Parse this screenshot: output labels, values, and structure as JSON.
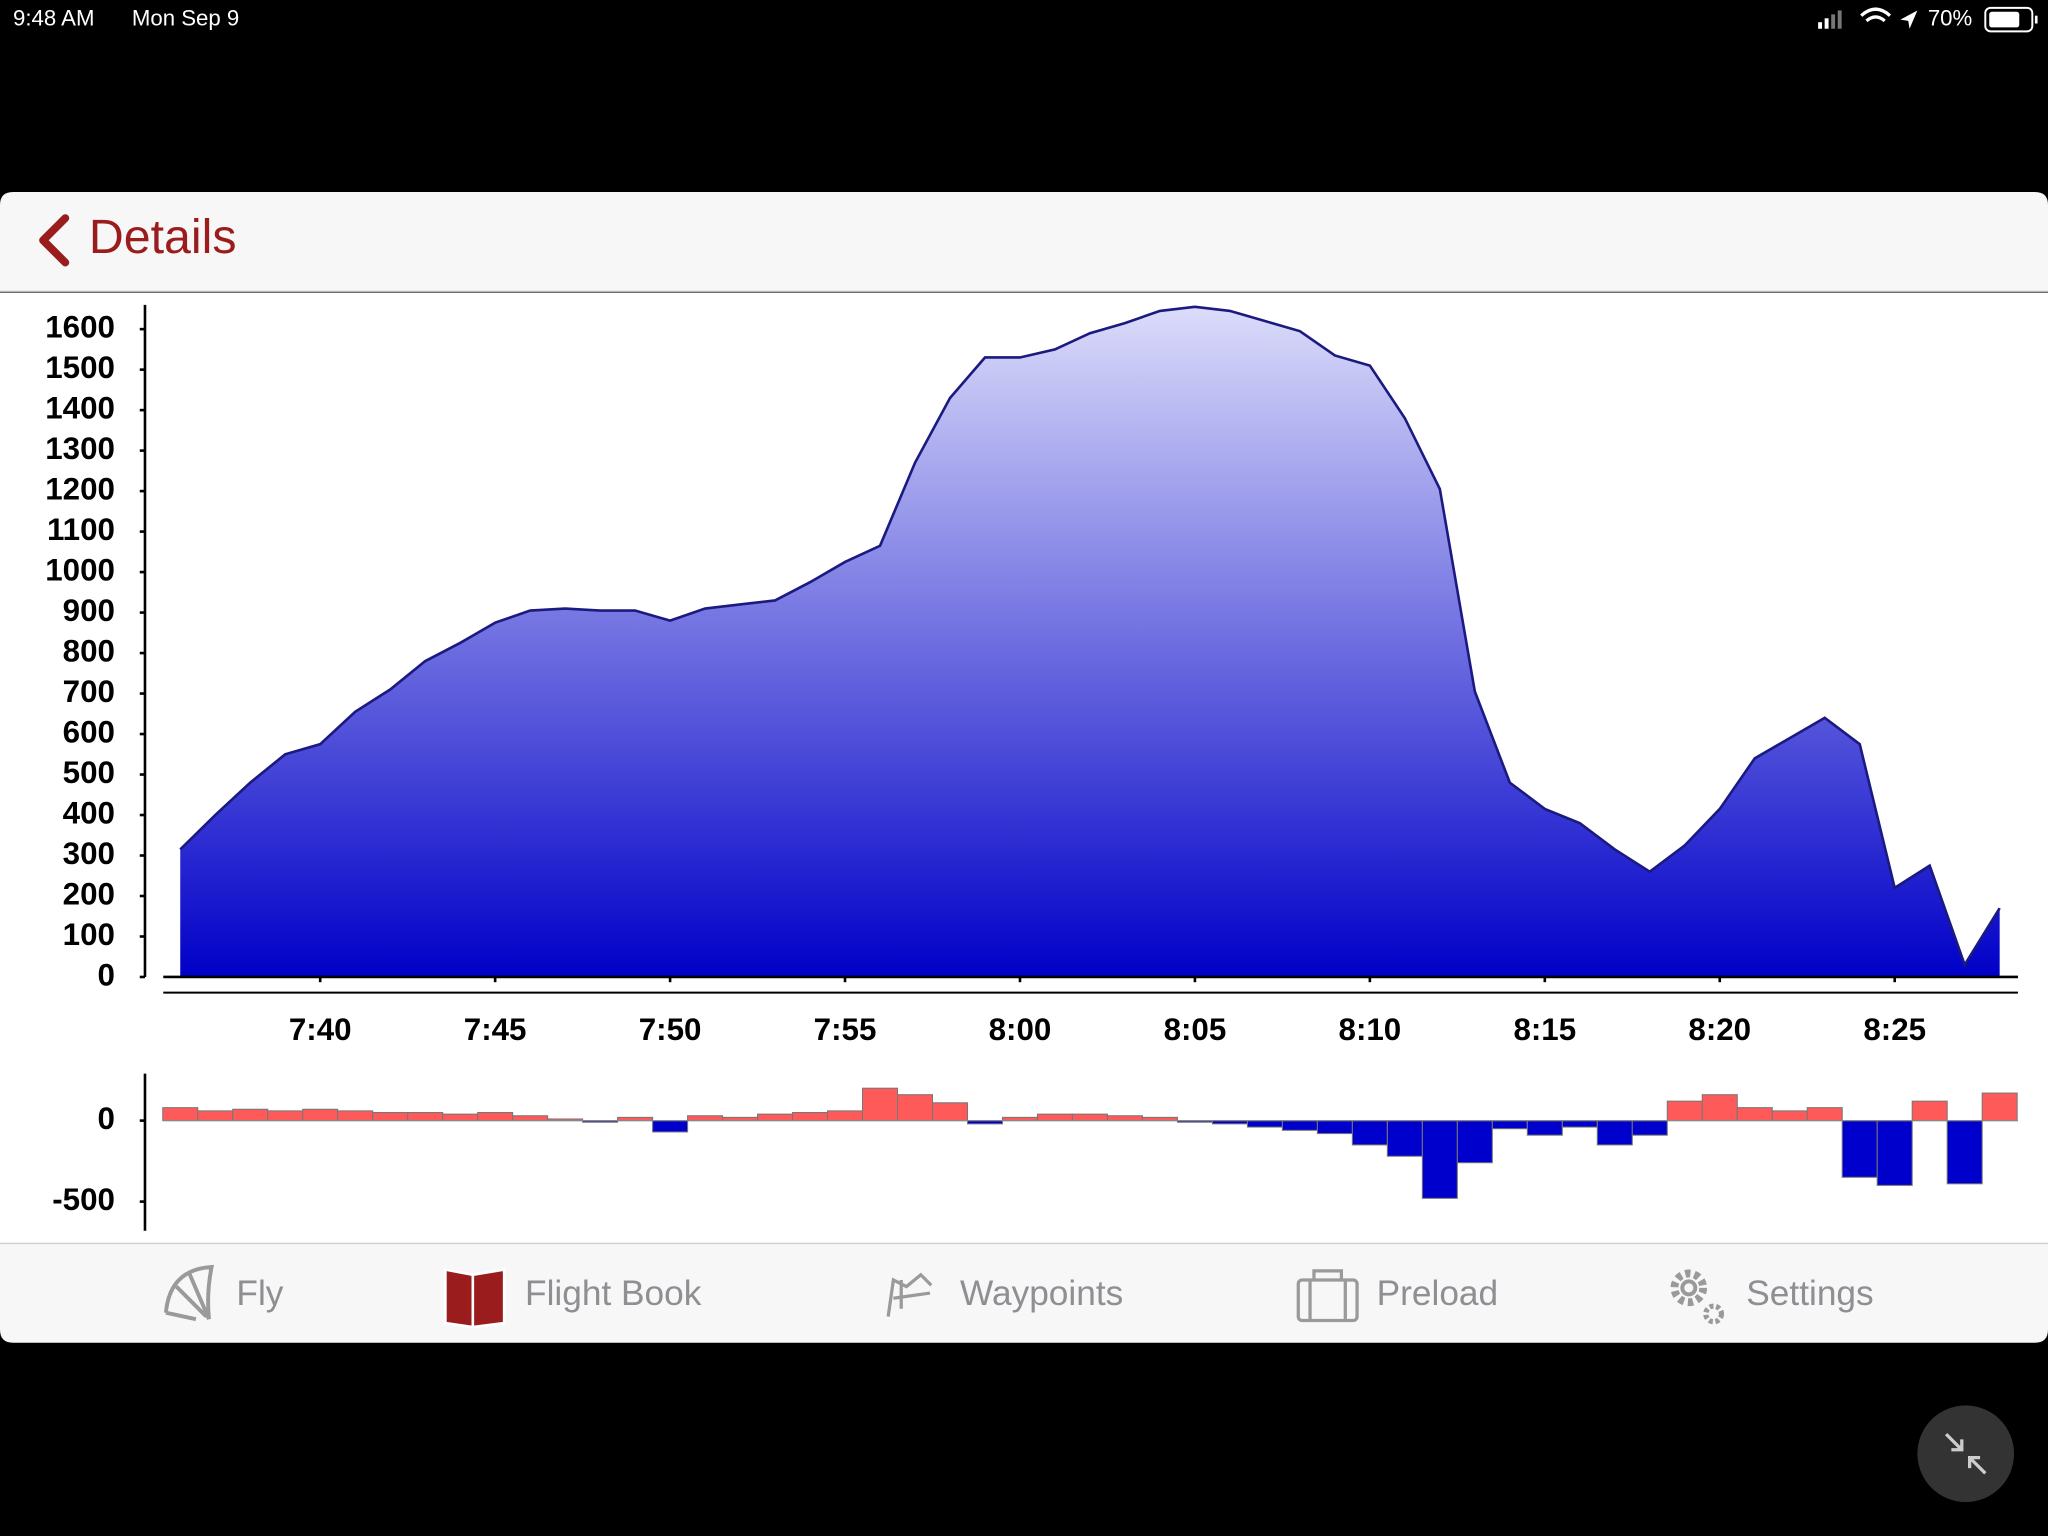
{
  "status_bar": {
    "time": "9:48 AM",
    "date": "Mon Sep 9",
    "battery": "70%"
  },
  "nav": {
    "back": "Details"
  },
  "chart_data": [
    {
      "type": "area",
      "x": [
        "7:36",
        "7:37",
        "7:38",
        "7:39",
        "7:40",
        "7:41",
        "7:42",
        "7:43",
        "7:44",
        "7:45",
        "7:46",
        "7:47",
        "7:48",
        "7:49",
        "7:50",
        "7:51",
        "7:52",
        "7:53",
        "7:54",
        "7:55",
        "7:56",
        "7:57",
        "7:58",
        "7:59",
        "8:00",
        "8:01",
        "8:02",
        "8:03",
        "8:04",
        "8:05",
        "8:06",
        "8:07",
        "8:08",
        "8:09",
        "8:10",
        "8:11",
        "8:12",
        "8:13",
        "8:14",
        "8:15",
        "8:16",
        "8:17",
        "8:18",
        "8:19",
        "8:20",
        "8:21",
        "8:22",
        "8:23",
        "8:24",
        "8:25",
        "8:26",
        "8:27",
        "8:28"
      ],
      "values": [
        315,
        400,
        480,
        550,
        575,
        655,
        710,
        780,
        825,
        875,
        905,
        910,
        905,
        905,
        880,
        910,
        920,
        930,
        975,
        1025,
        1065,
        1270,
        1430,
        1530,
        1530,
        1550,
        1590,
        1615,
        1645,
        1655,
        1645,
        1620,
        1595,
        1535,
        1510,
        1380,
        1205,
        705,
        480,
        415,
        380,
        315,
        260,
        325,
        415,
        540,
        590,
        640,
        575,
        220,
        275,
        30,
        170
      ],
      "xlim": [
        "7:36",
        "8:28"
      ],
      "xticks": [
        "7:40",
        "7:45",
        "7:50",
        "7:55",
        "8:00",
        "8:05",
        "8:10",
        "8:15",
        "8:20",
        "8:25"
      ],
      "ylim": [
        0,
        1660
      ],
      "yticks": [
        0,
        100,
        200,
        300,
        400,
        500,
        600,
        700,
        800,
        900,
        1000,
        1100,
        1200,
        1300,
        1400,
        1500,
        1600
      ],
      "line_color": "#1a1a80",
      "fill_gradient": [
        "#dcdcfa",
        "#0000c8"
      ]
    },
    {
      "type": "bar",
      "x": [
        "7:36",
        "7:37",
        "7:38",
        "7:39",
        "7:40",
        "7:41",
        "7:42",
        "7:43",
        "7:44",
        "7:45",
        "7:46",
        "7:47",
        "7:48",
        "7:49",
        "7:50",
        "7:51",
        "7:52",
        "7:53",
        "7:54",
        "7:55",
        "7:56",
        "7:57",
        "7:58",
        "7:59",
        "8:00",
        "8:01",
        "8:02",
        "8:03",
        "8:04",
        "8:05",
        "8:06",
        "8:07",
        "8:08",
        "8:09",
        "8:10",
        "8:11",
        "8:12",
        "8:13",
        "8:14",
        "8:15",
        "8:16",
        "8:17",
        "8:18",
        "8:19",
        "8:20",
        "8:21",
        "8:22",
        "8:23",
        "8:24",
        "8:25",
        "8:26",
        "8:27",
        "8:28"
      ],
      "values": [
        80,
        60,
        70,
        60,
        70,
        60,
        50,
        50,
        40,
        50,
        30,
        10,
        -10,
        20,
        -70,
        30,
        20,
        40,
        50,
        60,
        200,
        160,
        110,
        -20,
        20,
        40,
        40,
        30,
        20,
        -10,
        -20,
        -40,
        -60,
        -80,
        -150,
        -220,
        -480,
        -260,
        -50,
        -90,
        -40,
        -150,
        -90,
        120,
        160,
        80,
        60,
        80,
        -350,
        -400,
        120,
        -390,
        170
      ],
      "xlim": [
        "7:36",
        "8:28"
      ],
      "ylim": [
        -680,
        290
      ],
      "yticks": [
        -500,
        0
      ],
      "positive_color": "#ff5a5a",
      "negative_color": "#0000cc"
    }
  ],
  "tab_bar": {
    "tabs": [
      "Fly",
      "Flight Book",
      "Waypoints",
      "Preload",
      "Settings"
    ],
    "selected": 1
  }
}
